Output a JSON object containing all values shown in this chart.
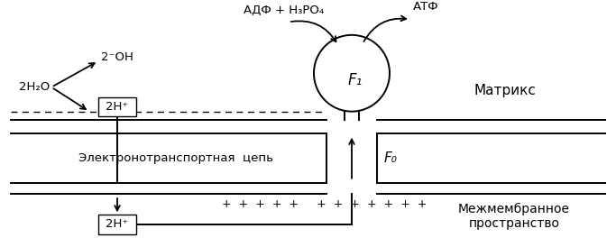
{
  "bg_color": "#ffffff",
  "f1_label": "F₁",
  "f0_label": "F₀",
  "label_matrix": "Матрикс",
  "label_etc": "Электронотранспортная  цепь",
  "label_intermembrane": "Межмембранное\nпространство",
  "label_adp": "АДФ + Н₃РО₄",
  "label_atp": "АТФ",
  "label_water": "2Н₂О",
  "label_oh": "2⁻ОН",
  "label_2h_top": "2Н⁺",
  "label_2h_bottom": "2Н⁺",
  "plus_signs": "+  +  +  +  +     +  +  +  +  +  +  +"
}
